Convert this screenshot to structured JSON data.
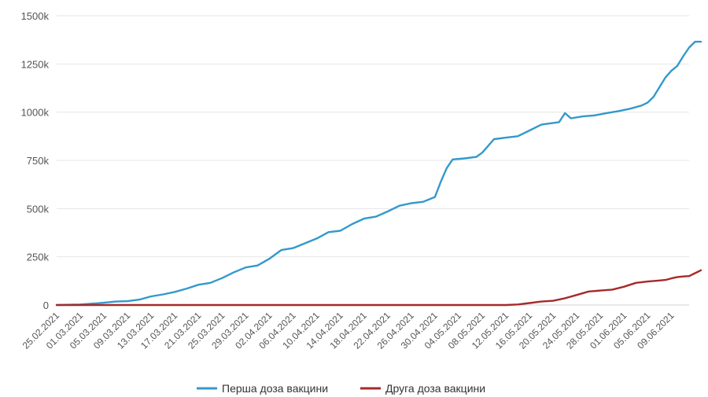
{
  "chart_data": {
    "type": "line",
    "title": "",
    "xlabel": "",
    "ylabel": "",
    "ylim": [
      0,
      1500000
    ],
    "y_ticks": [
      {
        "value": 0,
        "label": "0"
      },
      {
        "value": 250000,
        "label": "250k"
      },
      {
        "value": 500000,
        "label": "500k"
      },
      {
        "value": 750000,
        "label": "750k"
      },
      {
        "value": 1000000,
        "label": "1000k"
      },
      {
        "value": 1250000,
        "label": "1250k"
      },
      {
        "value": 1500000,
        "label": "1500k"
      }
    ],
    "x_range": [
      "2021-02-25",
      "2021-06-12"
    ],
    "x_ticks": [
      {
        "date": "2021-02-25",
        "label": "25.02.2021"
      },
      {
        "date": "2021-03-01",
        "label": "01.03.2021"
      },
      {
        "date": "2021-03-05",
        "label": "05.03.2021"
      },
      {
        "date": "2021-03-09",
        "label": "09.03.2021"
      },
      {
        "date": "2021-03-13",
        "label": "13.03.2021"
      },
      {
        "date": "2021-03-17",
        "label": "17.03.2021"
      },
      {
        "date": "2021-03-21",
        "label": "21.03.2021"
      },
      {
        "date": "2021-03-25",
        "label": "25.03.2021"
      },
      {
        "date": "2021-03-29",
        "label": "29.03.2021"
      },
      {
        "date": "2021-04-02",
        "label": "02.04.2021"
      },
      {
        "date": "2021-04-06",
        "label": "06.04.2021"
      },
      {
        "date": "2021-04-10",
        "label": "10.04.2021"
      },
      {
        "date": "2021-04-14",
        "label": "14.04.2021"
      },
      {
        "date": "2021-04-18",
        "label": "18.04.2021"
      },
      {
        "date": "2021-04-22",
        "label": "22.04.2021"
      },
      {
        "date": "2021-04-26",
        "label": "26.04.2021"
      },
      {
        "date": "2021-04-30",
        "label": "30.04.2021"
      },
      {
        "date": "2021-05-04",
        "label": "04.05.2021"
      },
      {
        "date": "2021-05-08",
        "label": "08.05.2021"
      },
      {
        "date": "2021-05-12",
        "label": "12.05.2021"
      },
      {
        "date": "2021-05-16",
        "label": "16.05.2021"
      },
      {
        "date": "2021-05-20",
        "label": "20.05.2021"
      },
      {
        "date": "2021-05-24",
        "label": "24.05.2021"
      },
      {
        "date": "2021-05-28",
        "label": "28.05.2021"
      },
      {
        "date": "2021-06-01",
        "label": "01.06.2021"
      },
      {
        "date": "2021-06-05",
        "label": "05.06.2021"
      },
      {
        "date": "2021-06-09",
        "label": "09.06.2021"
      }
    ],
    "grid": true,
    "legend_position": "bottom-center",
    "series": [
      {
        "name": "Перша доза вакцини",
        "color": "#3399cc",
        "points": [
          [
            "2021-02-25",
            0
          ],
          [
            "2021-03-01",
            3000
          ],
          [
            "2021-03-05",
            12000
          ],
          [
            "2021-03-07",
            18000
          ],
          [
            "2021-03-09",
            20000
          ],
          [
            "2021-03-11",
            28000
          ],
          [
            "2021-03-13",
            45000
          ],
          [
            "2021-03-15",
            55000
          ],
          [
            "2021-03-17",
            68000
          ],
          [
            "2021-03-19",
            85000
          ],
          [
            "2021-03-21",
            105000
          ],
          [
            "2021-03-23",
            115000
          ],
          [
            "2021-03-25",
            140000
          ],
          [
            "2021-03-27",
            170000
          ],
          [
            "2021-03-29",
            195000
          ],
          [
            "2021-03-31",
            205000
          ],
          [
            "2021-04-02",
            240000
          ],
          [
            "2021-04-04",
            285000
          ],
          [
            "2021-04-06",
            295000
          ],
          [
            "2021-04-08",
            320000
          ],
          [
            "2021-04-10",
            345000
          ],
          [
            "2021-04-12",
            378000
          ],
          [
            "2021-04-14",
            385000
          ],
          [
            "2021-04-16",
            420000
          ],
          [
            "2021-04-18",
            448000
          ],
          [
            "2021-04-20",
            458000
          ],
          [
            "2021-04-22",
            485000
          ],
          [
            "2021-04-24",
            515000
          ],
          [
            "2021-04-26",
            528000
          ],
          [
            "2021-04-28",
            535000
          ],
          [
            "2021-04-30",
            560000
          ],
          [
            "2021-05-01",
            640000
          ],
          [
            "2021-05-02",
            710000
          ],
          [
            "2021-05-03",
            755000
          ],
          [
            "2021-05-05",
            760000
          ],
          [
            "2021-05-07",
            768000
          ],
          [
            "2021-05-08",
            790000
          ],
          [
            "2021-05-10",
            860000
          ],
          [
            "2021-05-12",
            868000
          ],
          [
            "2021-05-14",
            875000
          ],
          [
            "2021-05-16",
            905000
          ],
          [
            "2021-05-18",
            935000
          ],
          [
            "2021-05-19",
            940000
          ],
          [
            "2021-05-21",
            948000
          ],
          [
            "2021-05-22",
            995000
          ],
          [
            "2021-05-23",
            968000
          ],
          [
            "2021-05-25",
            978000
          ],
          [
            "2021-05-27",
            983000
          ],
          [
            "2021-05-29",
            995000
          ],
          [
            "2021-05-31",
            1005000
          ],
          [
            "2021-06-02",
            1018000
          ],
          [
            "2021-06-04",
            1035000
          ],
          [
            "2021-06-05",
            1050000
          ],
          [
            "2021-06-06",
            1080000
          ],
          [
            "2021-06-07",
            1130000
          ],
          [
            "2021-06-08",
            1180000
          ],
          [
            "2021-06-09",
            1215000
          ],
          [
            "2021-06-10",
            1240000
          ],
          [
            "2021-06-11",
            1290000
          ],
          [
            "2021-06-12",
            1335000
          ],
          [
            "2021-06-13",
            1365000
          ],
          [
            "2021-06-14",
            1365000
          ]
        ]
      },
      {
        "name": "Друга доза вакцини",
        "color": "#a52a2a",
        "points": [
          [
            "2021-02-25",
            0
          ],
          [
            "2021-05-12",
            0
          ],
          [
            "2021-05-14",
            3000
          ],
          [
            "2021-05-16",
            10000
          ],
          [
            "2021-05-18",
            18000
          ],
          [
            "2021-05-20",
            22000
          ],
          [
            "2021-05-22",
            35000
          ],
          [
            "2021-05-24",
            52000
          ],
          [
            "2021-05-26",
            70000
          ],
          [
            "2021-05-28",
            75000
          ],
          [
            "2021-05-30",
            80000
          ],
          [
            "2021-06-01",
            95000
          ],
          [
            "2021-06-03",
            115000
          ],
          [
            "2021-06-05",
            122000
          ],
          [
            "2021-06-07",
            127000
          ],
          [
            "2021-06-08",
            130000
          ],
          [
            "2021-06-09",
            138000
          ],
          [
            "2021-06-10",
            145000
          ],
          [
            "2021-06-11",
            148000
          ],
          [
            "2021-06-12",
            150000
          ],
          [
            "2021-06-13",
            165000
          ],
          [
            "2021-06-14",
            180000
          ]
        ]
      }
    ]
  }
}
